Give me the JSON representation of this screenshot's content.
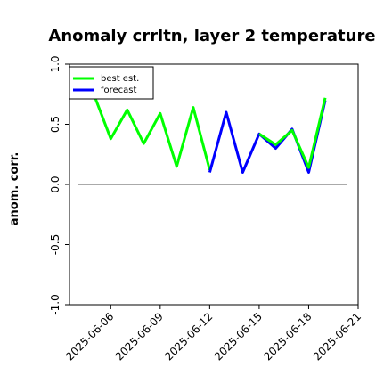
{
  "chart_data": {
    "type": "line",
    "title": "Anomaly crrltn, layer 2 temperature",
    "xlabel": "",
    "ylabel": "anom. corr.",
    "ylim": [
      -1.0,
      1.0
    ],
    "yticks": [
      "1.0",
      "0.5",
      "0.0",
      "-0.5",
      "-1.0"
    ],
    "ytick_values": [
      1.0,
      0.5,
      0.0,
      -0.5,
      -1.0
    ],
    "x_start": "2025-06-05",
    "xticks": [
      {
        "label": "2025-06-06",
        "day": 1,
        "color": "#000000"
      },
      {
        "label": "2025-06-09",
        "day": 4,
        "color": "#000000"
      },
      {
        "label": "2025-06-12",
        "day": 7,
        "color": "#2a8a2a"
      },
      {
        "label": "2025-06-15",
        "day": 10,
        "color": "#000000"
      },
      {
        "label": "2025-06-18",
        "day": 13,
        "color": "#000000"
      },
      {
        "label": "2025-06-21",
        "day": 16,
        "color": "#000000"
      }
    ],
    "xlim_days": [
      -1.5,
      16.0
    ],
    "zero_line": true,
    "grid": false,
    "legend_placement": "top-left",
    "series": [
      {
        "name": "best est.",
        "color": "#00ff00",
        "points": [
          [
            0,
            0.74
          ],
          [
            1,
            0.38
          ],
          [
            2,
            0.62
          ],
          [
            3,
            0.34
          ],
          [
            4,
            0.59
          ],
          [
            5,
            0.15
          ],
          [
            6,
            0.64
          ],
          [
            7,
            0.12
          ]
        ]
      },
      {
        "name": "forecast",
        "color": "#0000ff",
        "points": [
          [
            7,
            0.1
          ],
          [
            8,
            0.6
          ],
          [
            9,
            0.1
          ],
          [
            10,
            0.42
          ],
          [
            11,
            0.3
          ],
          [
            12,
            0.46
          ],
          [
            13,
            0.1
          ],
          [
            14,
            0.7
          ]
        ]
      },
      {
        "name": "",
        "color": "#00ff00",
        "points": [
          [
            10,
            0.42
          ],
          [
            11,
            0.33
          ],
          [
            12,
            0.45
          ],
          [
            13,
            0.14
          ],
          [
            14,
            0.72
          ]
        ]
      }
    ]
  }
}
